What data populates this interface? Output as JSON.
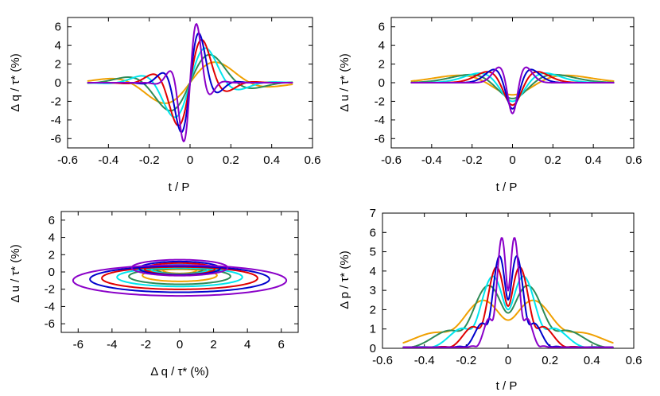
{
  "colors": [
    "#f0a000",
    "#2e8b57",
    "#00e5ee",
    "#e00000",
    "#0000cc",
    "#8a00c8"
  ],
  "chart_data": [
    {
      "id": "q",
      "type": "line",
      "xlabel": "t / P",
      "ylabel": "Δ q / τ* (%)",
      "xlim": [
        -0.6,
        0.6
      ],
      "ylim": [
        -7,
        7
      ],
      "xticks": [
        "-0.6",
        "-0.4",
        "-0.2",
        "0",
        "0.2",
        "0.4",
        "0.6"
      ],
      "yticks": [
        "-6",
        "-4",
        "-2",
        "0",
        "2",
        "4",
        "6"
      ],
      "series_peaks": [
        2.2,
        3.0,
        3.7,
        4.6,
        5.3,
        6.3
      ],
      "series_width": [
        0.15,
        0.118,
        0.092,
        0.07,
        0.052,
        0.038
      ]
    },
    {
      "id": "u",
      "type": "line",
      "xlabel": "t / P",
      "ylabel": "Δ u / τ* (%)",
      "xlim": [
        -0.6,
        0.6
      ],
      "ylim": [
        -7,
        7
      ],
      "xticks": [
        "-0.6",
        "-0.4",
        "-0.2",
        "0",
        "0.2",
        "0.4",
        "0.6"
      ],
      "yticks": [
        "-6",
        "-4",
        "-2",
        "0",
        "2",
        "4",
        "6"
      ],
      "series_dip": [
        -1.3,
        -1.7,
        -2.0,
        -2.4,
        -2.8,
        -3.3
      ],
      "series_side_peak": [
        1.0,
        1.1,
        1.3,
        1.5,
        1.8,
        2.1
      ]
    },
    {
      "id": "qu",
      "type": "scatter",
      "xlabel": "Δ q / τ* (%)",
      "ylabel": "Δ u / τ* (%)",
      "xlim": [
        -7,
        7
      ],
      "ylim": [
        -7,
        7
      ],
      "xticks": [
        "-6",
        "-4",
        "-2",
        "0",
        "2",
        "4",
        "6"
      ],
      "yticks": [
        "-6",
        "-4",
        "-2",
        "0",
        "2",
        "4",
        "6"
      ],
      "loops_qmax": [
        2.2,
        3.0,
        3.7,
        4.6,
        5.3,
        6.3
      ],
      "loops_umax": [
        1.3,
        1.7,
        2.0,
        2.4,
        2.8,
        3.3
      ]
    },
    {
      "id": "p",
      "type": "line",
      "xlabel": "t / P",
      "ylabel": "Δ p / τ* (%)",
      "xlim": [
        -0.6,
        0.6
      ],
      "ylim": [
        0,
        7
      ],
      "xticks": [
        "-0.6",
        "-0.4",
        "-0.2",
        "0",
        "0.2",
        "0.4",
        "0.6"
      ],
      "yticks": [
        "0",
        "1",
        "2",
        "3",
        "4",
        "5",
        "6",
        "7"
      ],
      "series_peaks": [
        2.6,
        3.4,
        3.9,
        4.4,
        5.0,
        6.0
      ]
    }
  ]
}
